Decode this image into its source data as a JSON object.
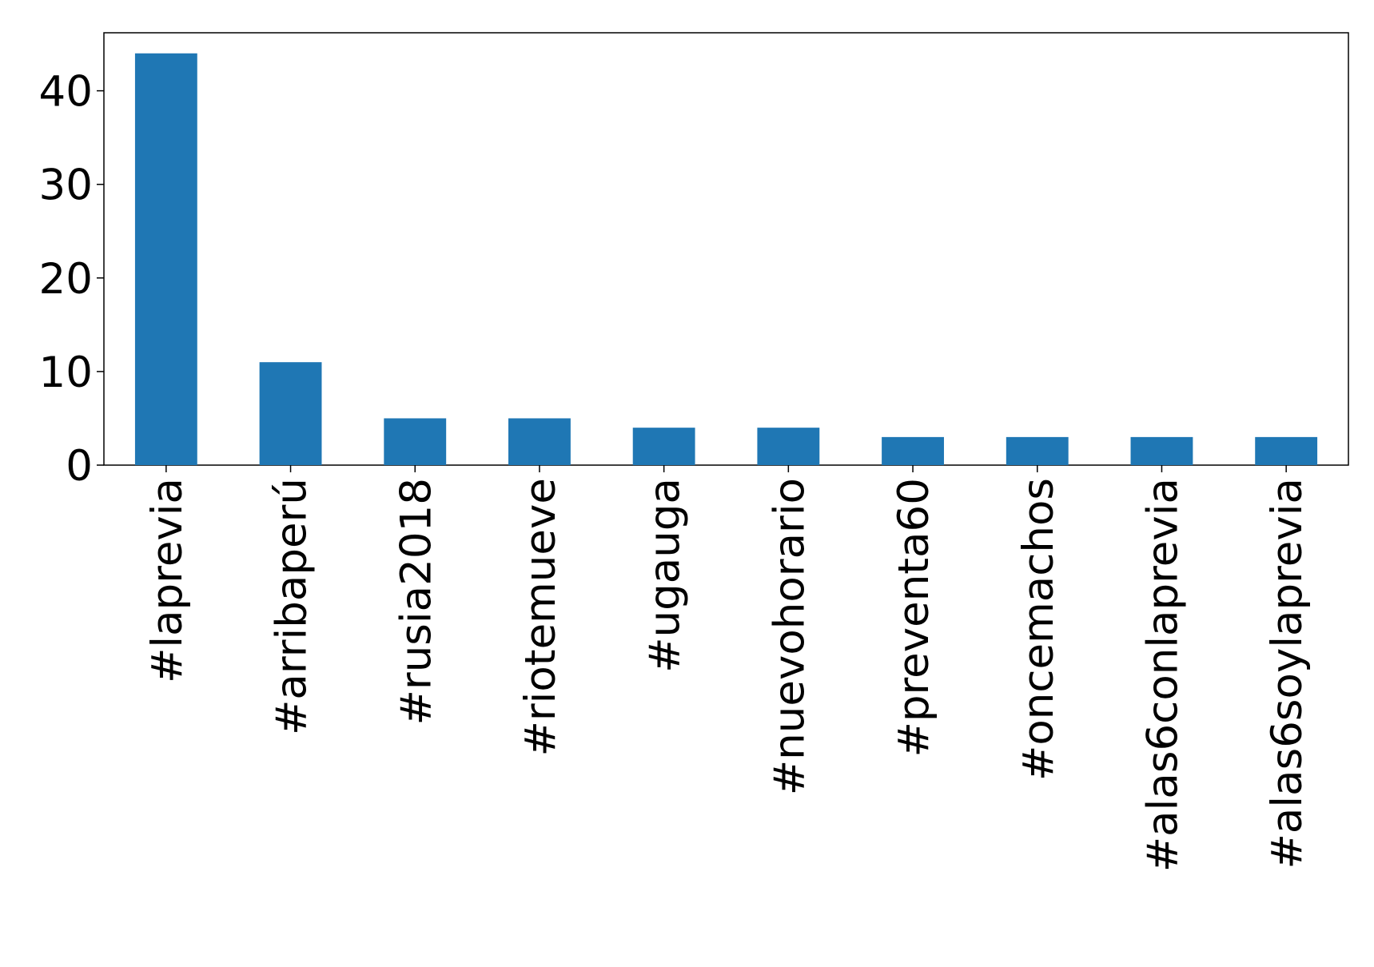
{
  "chart_data": {
    "type": "bar",
    "categories": [
      "#laprevia",
      "#arribaperú",
      "#rusia2018",
      "#riotemueve",
      "#ugauga",
      "#nuevohorario",
      "#preventa60",
      "#oncemachos",
      "#alas6conlaprevia",
      "#alas6soylaprevia"
    ],
    "values": [
      44,
      11,
      5,
      5,
      4,
      4,
      3,
      3,
      3,
      3
    ],
    "color": "#1f77b4",
    "ylim": [
      0,
      46.2
    ],
    "yticks": [
      0,
      10,
      20,
      30,
      40
    ],
    "grid": false
  }
}
